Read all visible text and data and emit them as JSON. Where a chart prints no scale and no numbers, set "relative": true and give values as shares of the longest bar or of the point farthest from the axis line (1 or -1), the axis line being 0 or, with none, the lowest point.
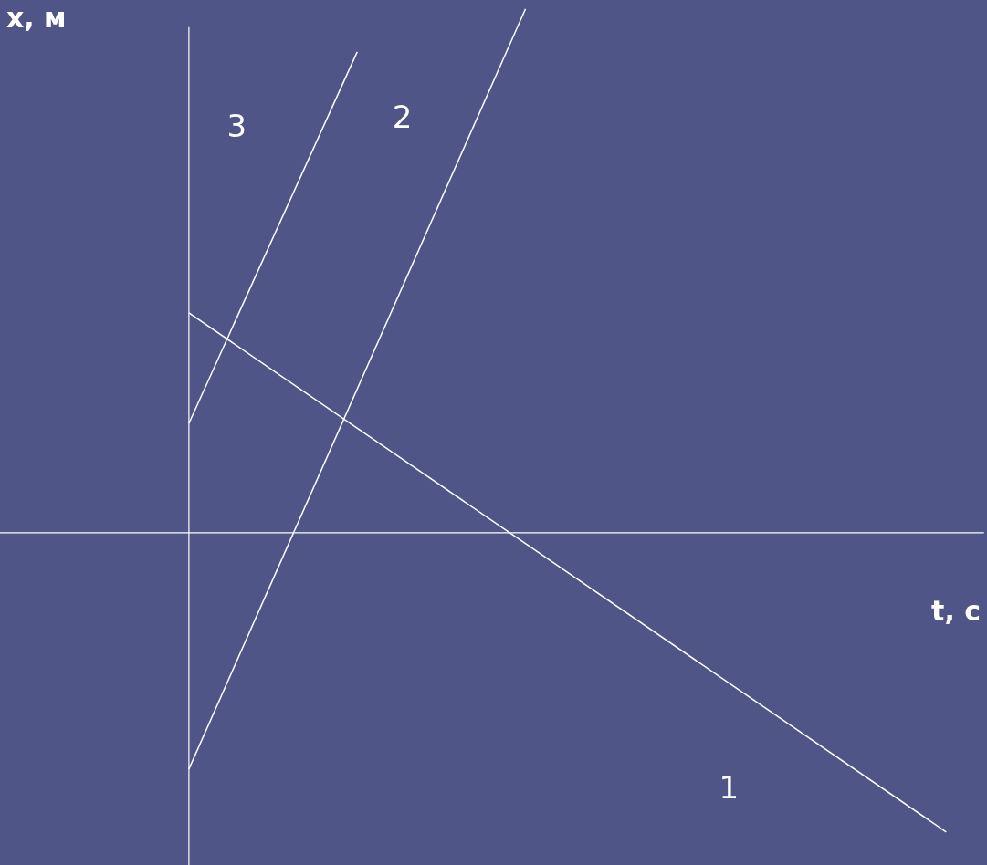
{
  "chart_data": {
    "type": "line",
    "relative": true,
    "xlabel": "t, с",
    "ylabel": "x, м",
    "categories": [
      null,
      null,
      null,
      null,
      null,
      null,
      null,
      null,
      null,
      null,
      null,
      null,
      null,
      null,
      null,
      null,
      null,
      null,
      null
    ],
    "series": [
      {
        "name": "1",
        "color": "#ffffff",
        "values": [
          0.42,
          null,
          null,
          null,
          null,
          null,
          null,
          null,
          null,
          null,
          null,
          null,
          null,
          null,
          null,
          null,
          null,
          null,
          -0.571
        ]
      },
      {
        "name": "2",
        "color": "#ffffff",
        "values": [
          -0.451,
          null,
          null,
          null,
          null,
          null,
          null,
          null,
          1.0,
          null,
          null,
          null,
          null,
          null,
          null,
          null,
          null,
          null,
          null
        ]
      },
      {
        "name": "3",
        "color": "#ffffff",
        "values": [
          0.209,
          null,
          null,
          null,
          0.918,
          null,
          null,
          null,
          null,
          null,
          null,
          null,
          null,
          null,
          null,
          null,
          null,
          null,
          null
        ]
      }
    ],
    "marker": "none",
    "line_style": "solid"
  }
}
